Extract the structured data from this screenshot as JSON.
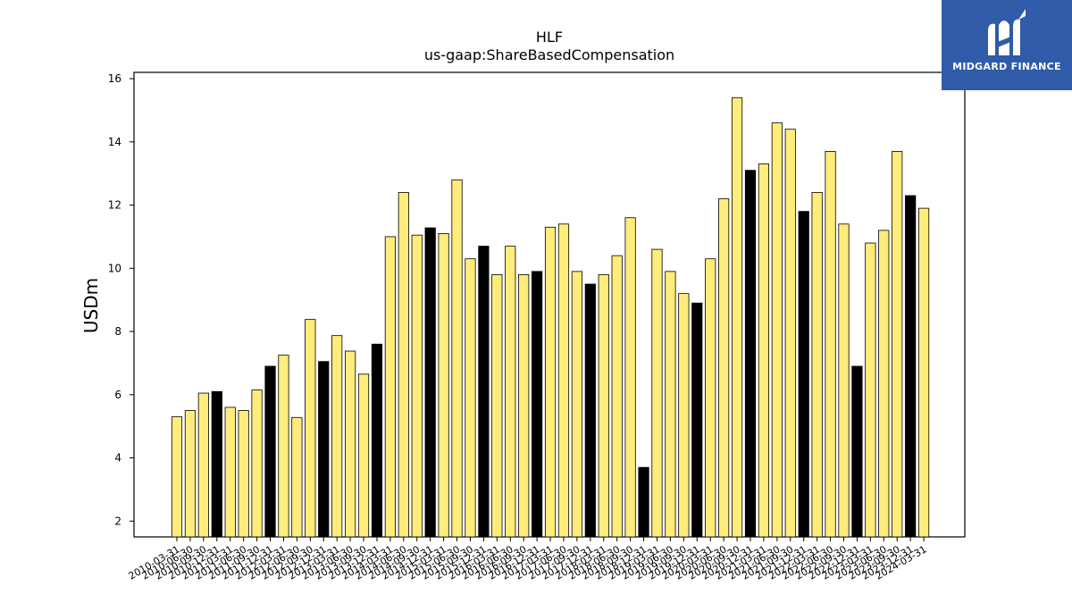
{
  "chart_data": {
    "type": "bar",
    "title": "HLF",
    "subtitle": "us-gaap:ShareBasedCompensation",
    "ylabel": "USDm",
    "xlabel": "",
    "ylim": [
      1.5,
      16.2
    ],
    "yticks": [
      2,
      4,
      6,
      8,
      10,
      12,
      14,
      16
    ],
    "grid": false,
    "colors": {
      "quarter": "#ffec7a",
      "year_end": "#000000",
      "edge": "#000000"
    },
    "categories": [
      "2010-03-31",
      "2010-06-30",
      "2010-09-30",
      "2010-12-31",
      "2011-03-31",
      "2011-06-30",
      "2011-09-30",
      "2011-12-31",
      "2012-03-31",
      "2012-06-30",
      "2012-09-30",
      "2012-12-31",
      "2013-03-31",
      "2013-06-30",
      "2013-09-30",
      "2013-12-31",
      "2014-03-31",
      "2014-06-30",
      "2014-09-30",
      "2014-12-31",
      "2015-03-31",
      "2015-06-30",
      "2015-09-30",
      "2015-12-31",
      "2016-03-31",
      "2016-06-30",
      "2016-09-30",
      "2016-12-31",
      "2017-03-31",
      "2017-06-30",
      "2017-09-30",
      "2017-12-31",
      "2018-03-31",
      "2018-06-30",
      "2018-09-30",
      "2018-12-31",
      "2019-03-31",
      "2019-06-30",
      "2019-09-30",
      "2019-12-31",
      "2020-03-31",
      "2020-06-30",
      "2020-09-30",
      "2020-12-31",
      "2021-03-31",
      "2021-06-30",
      "2021-09-30",
      "2021-12-31",
      "2022-03-31",
      "2022-06-30",
      "2022-09-30",
      "2022-12-31",
      "2023-03-31",
      "2023-06-30",
      "2023-09-30",
      "2023-12-31",
      "2024-03-31"
    ],
    "values": [
      5.3,
      5.5,
      6.05,
      6.1,
      5.6,
      5.5,
      6.15,
      6.9,
      7.25,
      5.28,
      8.38,
      7.05,
      7.87,
      7.38,
      6.65,
      7.6,
      11.0,
      12.4,
      11.05,
      11.28,
      11.1,
      12.8,
      10.3,
      10.7,
      9.8,
      10.7,
      9.8,
      9.9,
      11.3,
      11.4,
      9.9,
      9.5,
      9.8,
      10.4,
      11.6,
      3.7,
      10.6,
      9.9,
      9.2,
      8.9,
      10.3,
      12.2,
      15.4,
      13.1,
      13.3,
      14.6,
      14.4,
      11.8,
      12.4,
      13.7,
      11.4,
      6.9,
      10.8,
      11.2,
      13.7,
      12.3,
      11.9
    ],
    "highlight": [
      false,
      false,
      false,
      true,
      false,
      false,
      false,
      true,
      false,
      false,
      false,
      true,
      false,
      false,
      false,
      true,
      false,
      false,
      false,
      true,
      false,
      false,
      false,
      true,
      false,
      false,
      false,
      true,
      false,
      false,
      false,
      true,
      false,
      false,
      false,
      true,
      false,
      false,
      false,
      true,
      false,
      false,
      false,
      true,
      false,
      false,
      false,
      true,
      false,
      false,
      false,
      true,
      false,
      false,
      false,
      true,
      false
    ]
  },
  "logo": {
    "text": "MIDGARD FINANCE"
  }
}
